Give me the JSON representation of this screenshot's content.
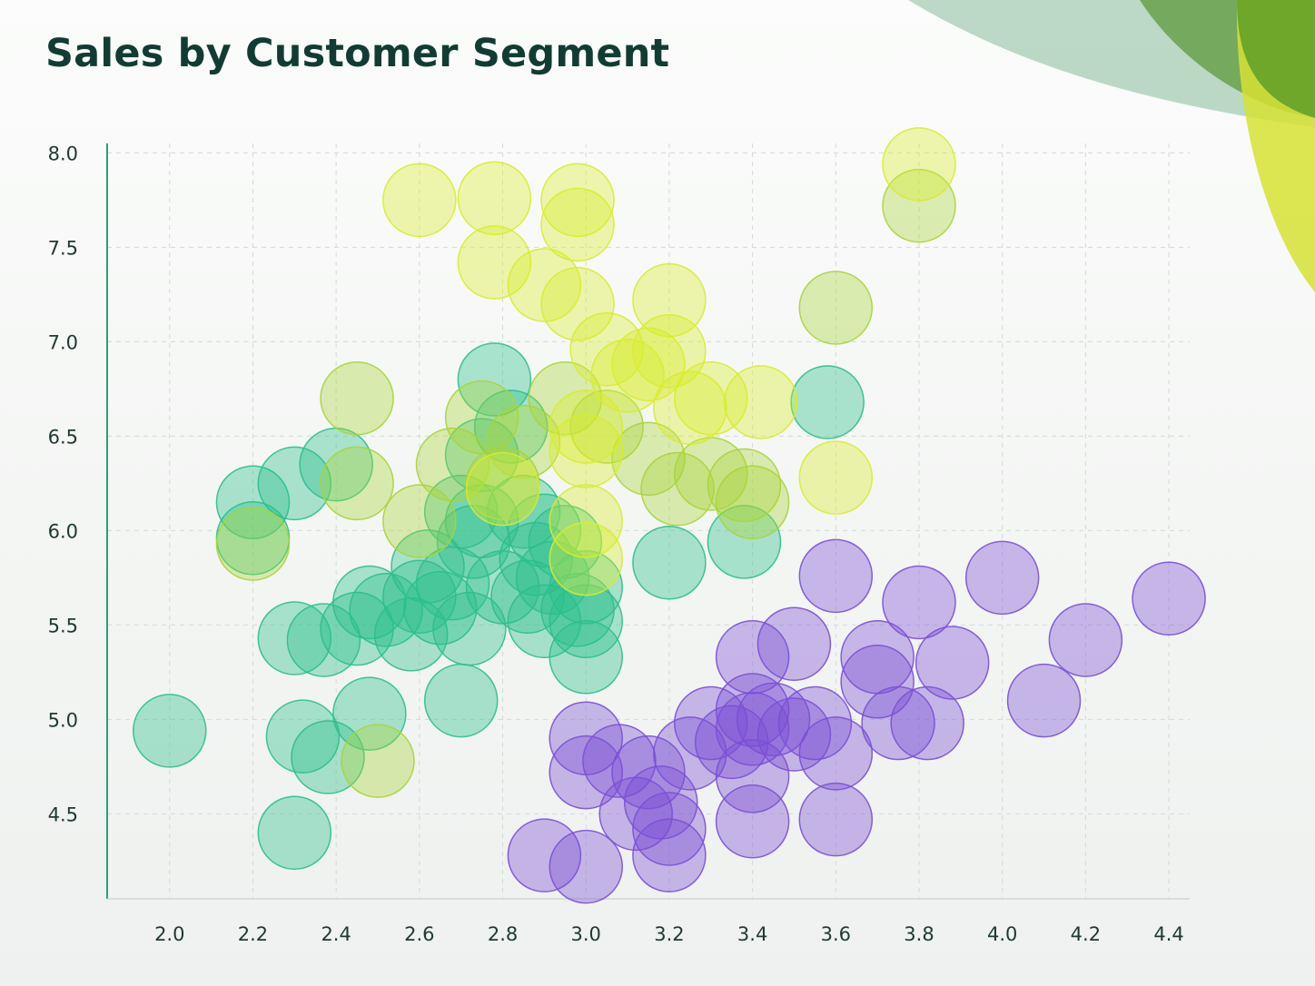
{
  "chart_data": {
    "type": "scatter",
    "title": "Sales by Customer Segment",
    "xlabel": "",
    "ylabel": "",
    "xlim": [
      1.85,
      4.45
    ],
    "ylim": [
      4.05,
      8.05
    ],
    "grid": true,
    "x_ticks": [
      "2.0",
      "2.2",
      "2.4",
      "2.6",
      "2.8",
      "3.0",
      "3.2",
      "3.4",
      "3.6",
      "3.8",
      "4.0",
      "4.2",
      "4.4"
    ],
    "y_ticks": [
      "8.0",
      "7.5",
      "7.0",
      "6.5",
      "6.0",
      "5.5",
      "5.0",
      "4.5"
    ],
    "colors": {
      "teal": "#2bbf8c",
      "green_yellow": "#a8d43a",
      "yellow": "#d8ec2e",
      "violet": "#7b4fd6"
    },
    "series": [
      {
        "color": "teal",
        "points": [
          [
            2.0,
            4.94
          ],
          [
            2.2,
            6.15
          ],
          [
            2.2,
            5.96
          ],
          [
            2.3,
            6.25
          ],
          [
            2.3,
            5.43
          ],
          [
            2.3,
            4.4
          ],
          [
            2.32,
            4.91
          ],
          [
            2.37,
            5.42
          ],
          [
            2.38,
            4.8
          ],
          [
            2.4,
            6.35
          ],
          [
            2.45,
            5.48
          ],
          [
            2.48,
            5.03
          ],
          [
            2.48,
            5.62
          ],
          [
            2.52,
            5.58
          ],
          [
            2.58,
            5.45
          ],
          [
            2.6,
            5.65
          ],
          [
            2.62,
            5.81
          ],
          [
            2.65,
            5.59
          ],
          [
            2.68,
            5.72
          ],
          [
            2.7,
            5.1
          ],
          [
            2.7,
            6.1
          ],
          [
            2.72,
            5.48
          ],
          [
            2.73,
            5.94
          ],
          [
            2.75,
            6.4
          ],
          [
            2.75,
            6.05
          ],
          [
            2.78,
            6.8
          ],
          [
            2.8,
            5.7
          ],
          [
            2.82,
            6.55
          ],
          [
            2.85,
            6.1
          ],
          [
            2.86,
            5.65
          ],
          [
            2.88,
            5.85
          ],
          [
            2.9,
            6.0
          ],
          [
            2.9,
            5.52
          ],
          [
            2.92,
            5.75
          ],
          [
            2.95,
            5.94
          ],
          [
            2.98,
            5.58
          ],
          [
            3.0,
            5.33
          ],
          [
            3.0,
            5.52
          ],
          [
            3.0,
            5.7
          ],
          [
            3.2,
            5.83
          ],
          [
            3.38,
            5.94
          ],
          [
            3.58,
            6.68
          ]
        ]
      },
      {
        "color": "green_yellow",
        "points": [
          [
            2.2,
            5.93
          ],
          [
            2.45,
            6.7
          ],
          [
            2.45,
            6.25
          ],
          [
            2.5,
            4.78
          ],
          [
            2.6,
            6.05
          ],
          [
            2.68,
            6.35
          ],
          [
            2.75,
            6.6
          ],
          [
            2.8,
            6.25
          ],
          [
            2.85,
            6.47
          ],
          [
            2.95,
            6.7
          ],
          [
            3.05,
            6.55
          ],
          [
            3.15,
            6.38
          ],
          [
            3.22,
            6.22
          ],
          [
            3.3,
            6.3
          ],
          [
            3.38,
            6.24
          ],
          [
            3.4,
            6.15
          ],
          [
            3.6,
            7.18
          ],
          [
            3.8,
            7.72
          ]
        ]
      },
      {
        "color": "yellow",
        "points": [
          [
            2.6,
            7.75
          ],
          [
            2.78,
            7.76
          ],
          [
            2.78,
            7.42
          ],
          [
            2.9,
            7.3
          ],
          [
            2.98,
            7.75
          ],
          [
            2.98,
            7.62
          ],
          [
            2.98,
            7.2
          ],
          [
            3.0,
            6.55
          ],
          [
            3.0,
            6.42
          ],
          [
            3.0,
            6.05
          ],
          [
            3.0,
            5.85
          ],
          [
            3.05,
            6.96
          ],
          [
            3.1,
            6.82
          ],
          [
            3.15,
            6.88
          ],
          [
            3.2,
            7.22
          ],
          [
            3.2,
            6.95
          ],
          [
            3.25,
            6.65
          ],
          [
            3.3,
            6.7
          ],
          [
            3.42,
            6.68
          ],
          [
            3.6,
            6.28
          ],
          [
            3.8,
            7.94
          ],
          [
            2.8,
            6.22
          ]
        ]
      },
      {
        "color": "violet",
        "points": [
          [
            2.9,
            4.28
          ],
          [
            3.0,
            4.22
          ],
          [
            3.0,
            4.9
          ],
          [
            3.0,
            4.72
          ],
          [
            3.08,
            4.78
          ],
          [
            3.12,
            4.5
          ],
          [
            3.15,
            4.72
          ],
          [
            3.18,
            4.56
          ],
          [
            3.2,
            4.42
          ],
          [
            3.2,
            4.28
          ],
          [
            3.25,
            4.82
          ],
          [
            3.3,
            4.98
          ],
          [
            3.35,
            4.88
          ],
          [
            3.4,
            5.33
          ],
          [
            3.4,
            5.05
          ],
          [
            3.4,
            4.95
          ],
          [
            3.4,
            4.7
          ],
          [
            3.4,
            4.46
          ],
          [
            3.45,
            5.0
          ],
          [
            3.5,
            5.4
          ],
          [
            3.5,
            4.92
          ],
          [
            3.55,
            4.98
          ],
          [
            3.6,
            5.76
          ],
          [
            3.6,
            4.82
          ],
          [
            3.6,
            4.47
          ],
          [
            3.7,
            5.33
          ],
          [
            3.7,
            5.2
          ],
          [
            3.75,
            4.98
          ],
          [
            3.8,
            5.62
          ],
          [
            3.82,
            4.98
          ],
          [
            3.88,
            5.3
          ],
          [
            4.0,
            5.75
          ],
          [
            4.1,
            5.1
          ],
          [
            4.2,
            5.42
          ],
          [
            4.4,
            5.64
          ]
        ]
      }
    ]
  }
}
